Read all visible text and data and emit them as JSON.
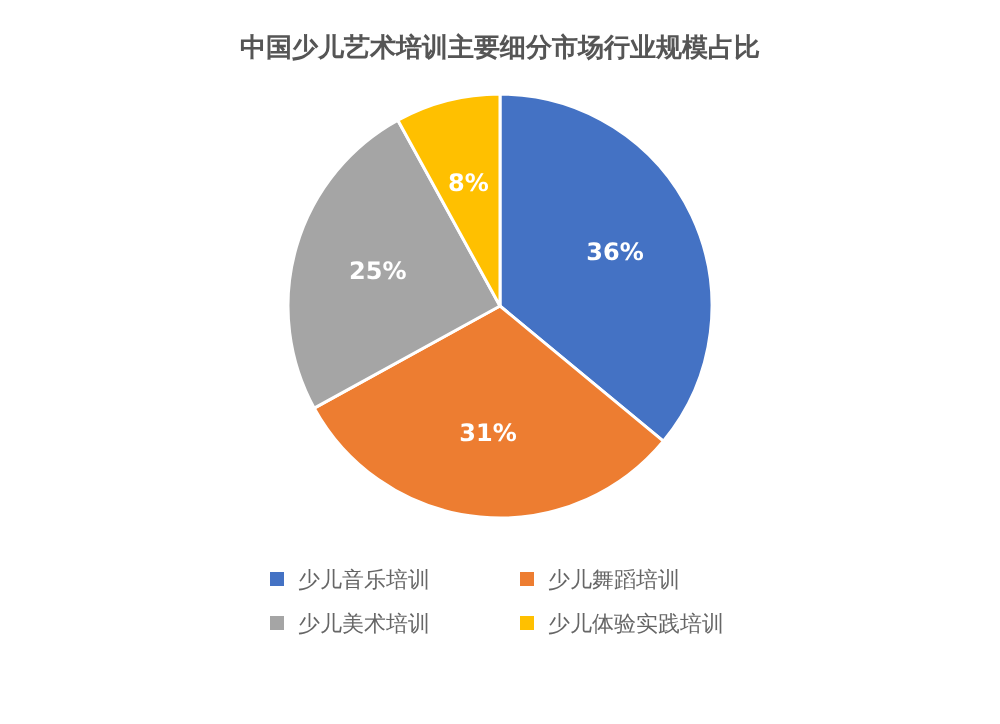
{
  "chart_data": {
    "type": "pie",
    "title": "中国少儿艺术培训主要细分市场行业规模占比",
    "categories": [
      "少儿音乐培训",
      "少儿舞蹈培训",
      "少儿美术培训",
      "少儿体验实践培训"
    ],
    "values": [
      36,
      31,
      25,
      8
    ],
    "colors": [
      "#4472c4",
      "#ed7d31",
      "#a5a5a5",
      "#ffc000"
    ],
    "value_labels": [
      "36%",
      "31%",
      "25%",
      "8%"
    ],
    "legend": "bottom"
  }
}
